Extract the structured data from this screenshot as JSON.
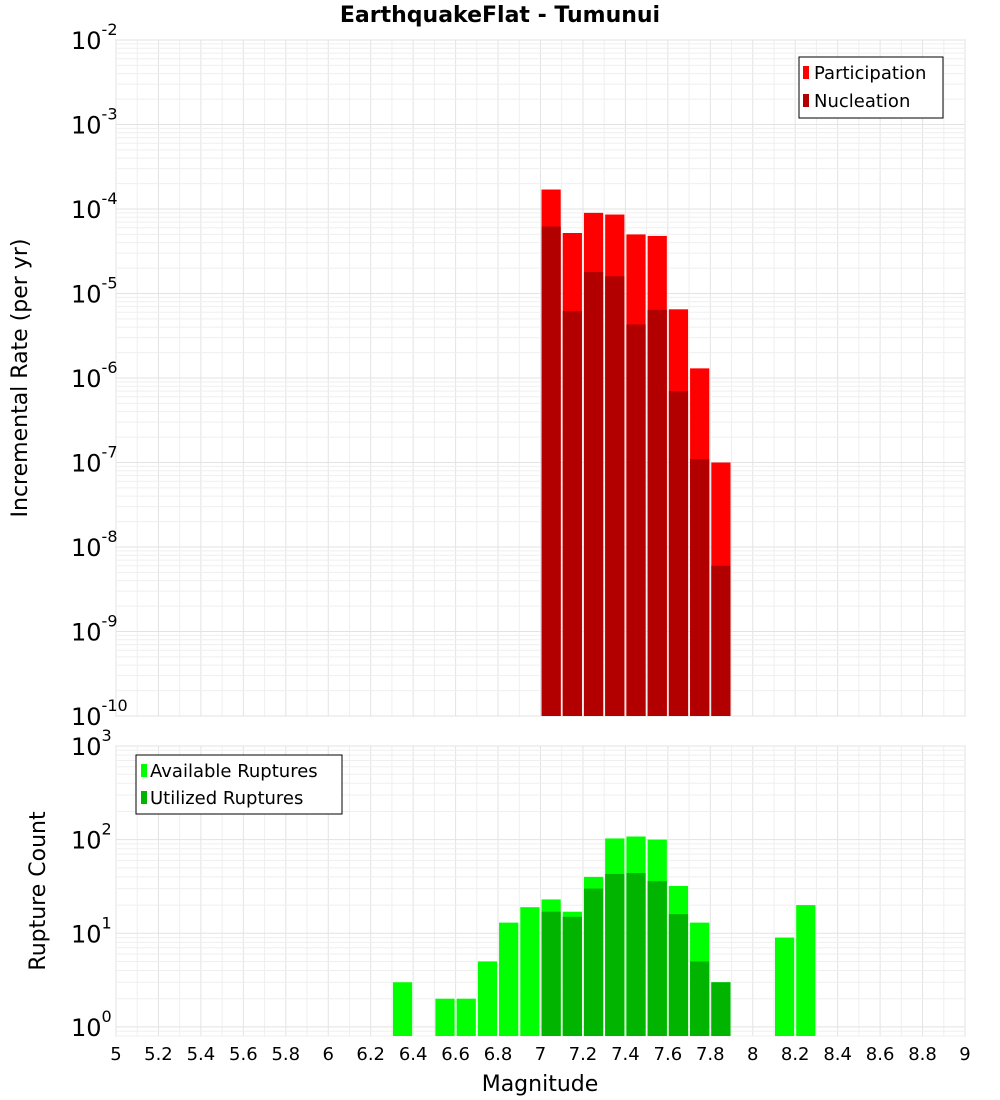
{
  "chart_data": [
    {
      "type": "bar",
      "title": "EarthquakeFlat - Tumunui",
      "ylabel": "Incremental Rate (per yr)",
      "yscale": "log",
      "ylim": [
        1e-10,
        0.01
      ],
      "xlim": [
        5,
        9
      ],
      "bin_width": 0.1,
      "legend_position": "top-right",
      "grid": true,
      "x": [
        7.05,
        7.15,
        7.25,
        7.35,
        7.45,
        7.55,
        7.65,
        7.75,
        7.85
      ],
      "series": [
        {
          "name": "Participation",
          "color": "#ff0000",
          "values": [
            0.00017,
            5.2e-05,
            9e-05,
            8.6e-05,
            5e-05,
            4.8e-05,
            6.5e-06,
            1.3e-06,
            1e-07
          ]
        },
        {
          "name": "Nucleation",
          "color": "#b20000",
          "values": [
            6.2e-05,
            6.2e-06,
            1.8e-05,
            1.6e-05,
            4.3e-06,
            6.4e-06,
            7e-07,
            1.1e-07,
            6e-09
          ]
        }
      ]
    },
    {
      "type": "bar",
      "title": "",
      "xlabel": "Magnitude",
      "ylabel": "Rupture Count",
      "yscale": "log",
      "ylim": [
        0.8,
        1000
      ],
      "xlim": [
        5,
        9
      ],
      "bin_width": 0.1,
      "legend_position": "top-left",
      "grid": true,
      "series": [
        {
          "name": "Available Ruptures",
          "color": "#00ff00",
          "x": [
            6.35,
            6.55,
            6.65,
            6.75,
            6.85,
            6.95,
            7.05,
            7.15,
            7.25,
            7.35,
            7.45,
            7.55,
            7.65,
            7.75,
            7.85,
            8.15,
            8.25
          ],
          "values": [
            3,
            2,
            2,
            5,
            13,
            19,
            23,
            17,
            40,
            103,
            108,
            100,
            32,
            13,
            3,
            9,
            20
          ]
        },
        {
          "name": "Utilized Ruptures",
          "color": "#00b400",
          "x": [
            7.05,
            7.15,
            7.25,
            7.35,
            7.45,
            7.55,
            7.65,
            7.75,
            7.85
          ],
          "values": [
            17,
            15,
            30,
            43,
            44,
            36,
            16,
            5,
            3
          ]
        }
      ]
    }
  ],
  "xticks": [
    "5",
    "5.2",
    "5.4",
    "5.6",
    "5.8",
    "6",
    "6.2",
    "6.4",
    "6.6",
    "6.8",
    "7",
    "7.2",
    "7.4",
    "7.6",
    "7.8",
    "8",
    "8.2",
    "8.4",
    "8.6",
    "8.8",
    "9"
  ],
  "top_yticks": [
    {
      "base": "10",
      "exp": "-10"
    },
    {
      "base": "10",
      "exp": "-9"
    },
    {
      "base": "10",
      "exp": "-8"
    },
    {
      "base": "10",
      "exp": "-7"
    },
    {
      "base": "10",
      "exp": "-6"
    },
    {
      "base": "10",
      "exp": "-5"
    },
    {
      "base": "10",
      "exp": "-4"
    },
    {
      "base": "10",
      "exp": "-3"
    },
    {
      "base": "10",
      "exp": "-2"
    }
  ],
  "bottom_yticks": [
    {
      "base": "10",
      "exp": "0"
    },
    {
      "base": "10",
      "exp": "1"
    },
    {
      "base": "10",
      "exp": "2"
    },
    {
      "base": "10",
      "exp": "3"
    }
  ]
}
